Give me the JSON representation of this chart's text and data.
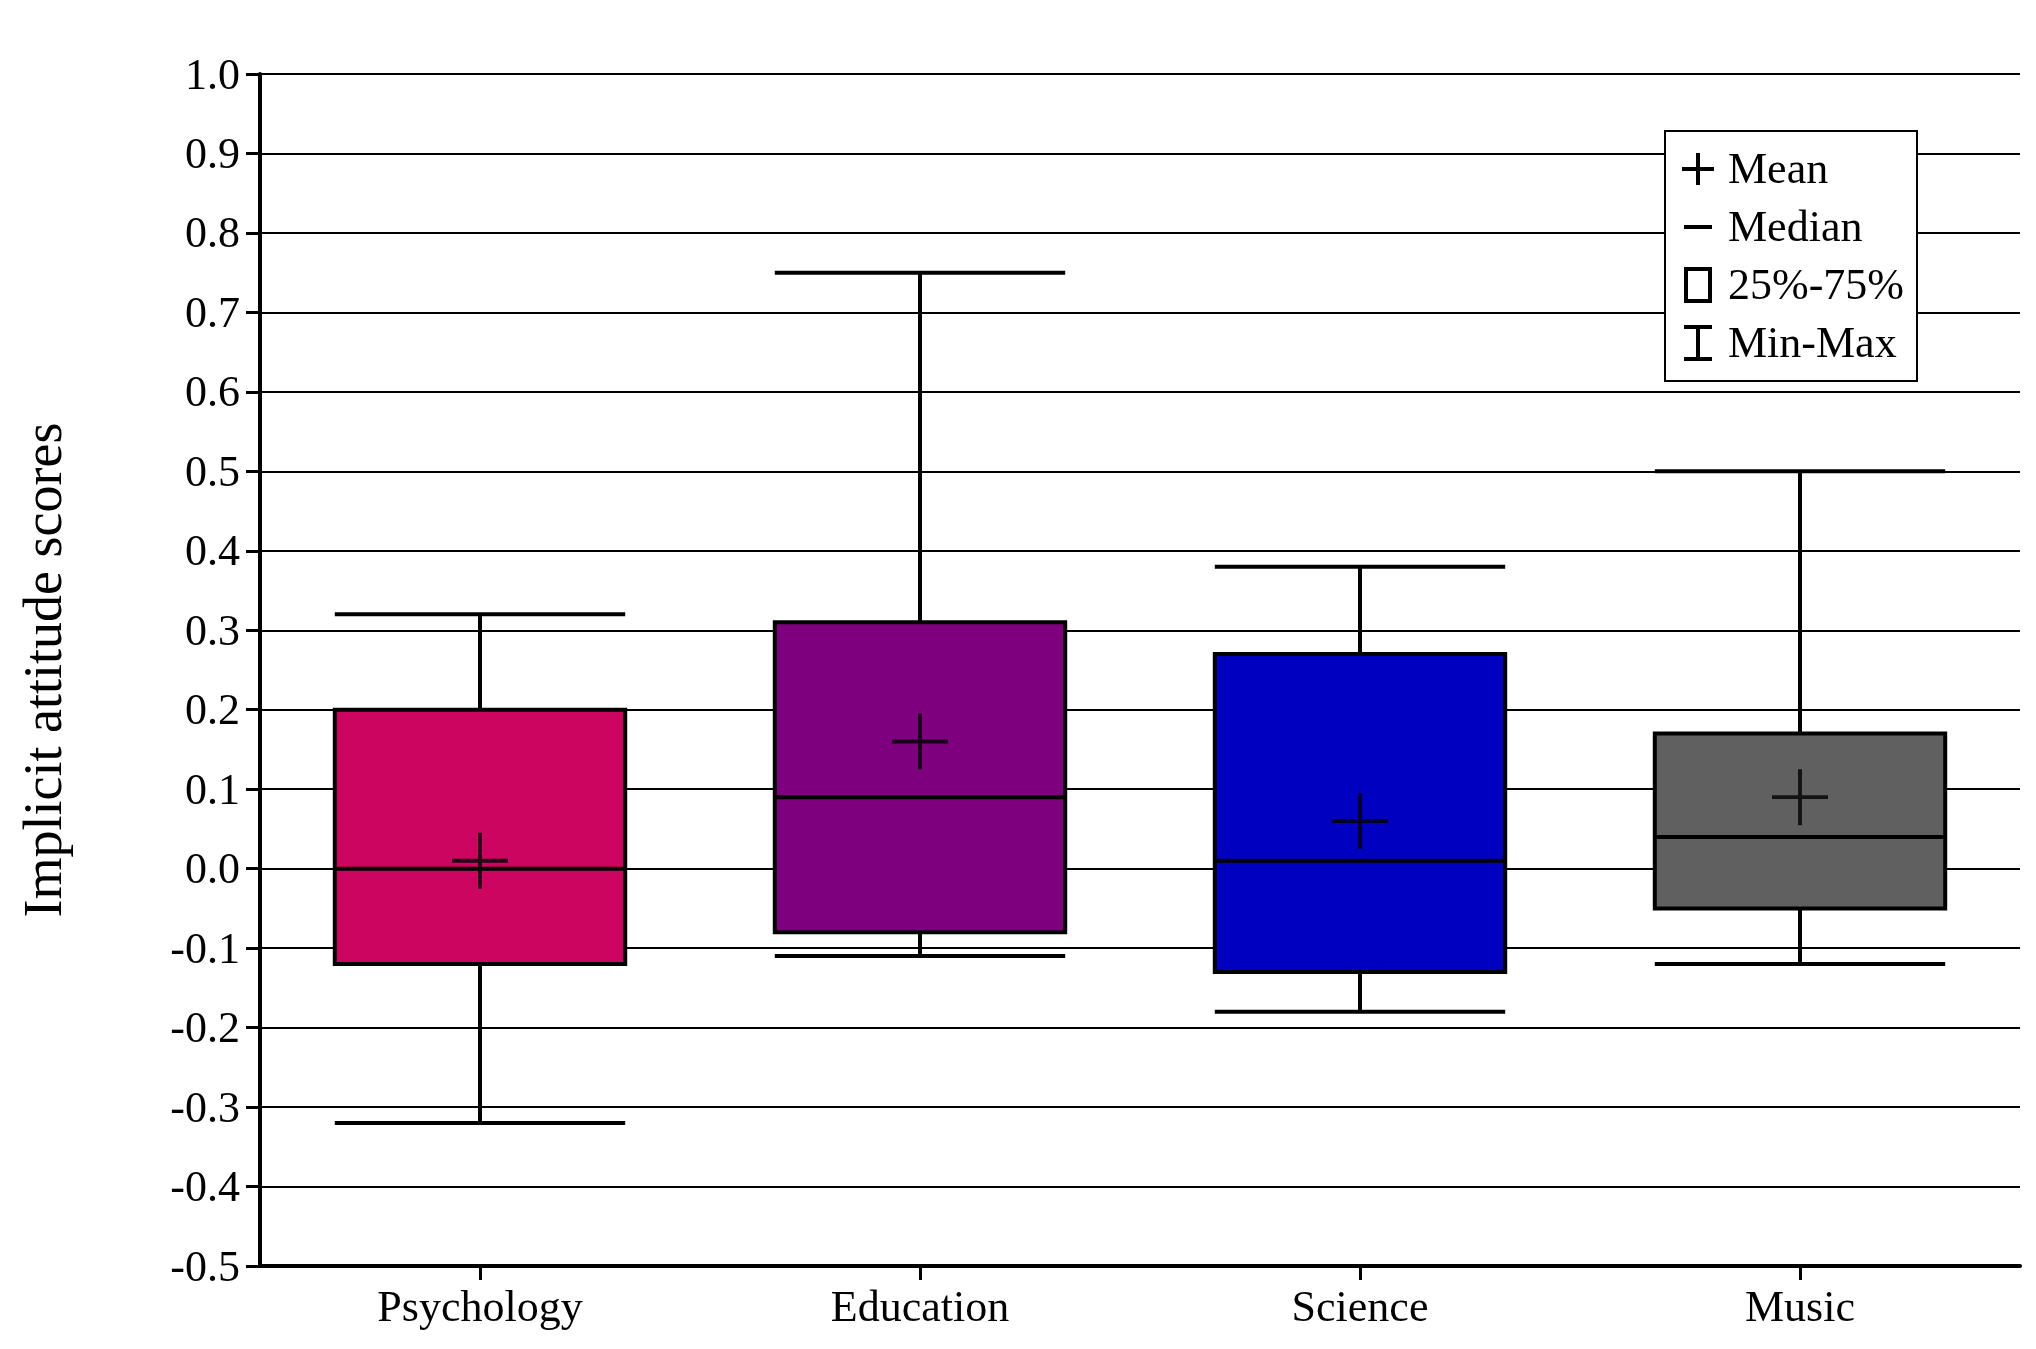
{
  "chart_data": {
    "type": "box",
    "ylabel": "Implicit attitude scores",
    "categories": [
      "Psychology",
      "Education",
      "Science",
      "Music"
    ],
    "series": [
      {
        "name": "25%-75%",
        "colors": [
          "#cc0660",
          "#7f007f",
          "#0000c0",
          "#606060"
        ],
        "boxes": [
          {
            "low": -0.32,
            "q1": -0.12,
            "median": 0.0,
            "q3": 0.2,
            "high": 0.32
          },
          {
            "low": -0.11,
            "q1": -0.08,
            "median": 0.09,
            "q3": 0.31,
            "high": 0.75
          },
          {
            "low": -0.18,
            "q1": -0.13,
            "median": 0.01,
            "q3": 0.27,
            "high": 0.38
          },
          {
            "low": -0.12,
            "q1": -0.05,
            "median": 0.04,
            "q3": 0.17,
            "high": 0.5
          }
        ]
      },
      {
        "name": "Mean",
        "type": "scatter",
        "color": "#000000",
        "x": [
          "Psychology",
          "Education",
          "Science",
          "Music"
        ],
        "values": [
          0.01,
          0.16,
          0.06,
          0.09
        ]
      }
    ],
    "ylim": [
      -0.5,
      1.0
    ],
    "yticks": [
      {
        "value": -0.5,
        "label": "-0.5"
      },
      {
        "value": -0.4,
        "label": "-0.4"
      },
      {
        "value": -0.3,
        "label": "-0.3"
      },
      {
        "value": -0.2,
        "label": "-0.2"
      },
      {
        "value": -0.1,
        "label": "-0.1"
      },
      {
        "value": 0,
        "label": "0.0"
      },
      {
        "value": 0.1,
        "label": "0.1"
      },
      {
        "value": 0.2,
        "label": "0.2"
      },
      {
        "value": 0.3,
        "label": "0.3"
      },
      {
        "value": 0.4,
        "label": "0.4"
      },
      {
        "value": 0.5,
        "label": "0.5"
      },
      {
        "value": 0.6,
        "label": "0.6"
      },
      {
        "value": 0.7,
        "label": "0.7"
      },
      {
        "value": 0.8,
        "label": "0.8"
      },
      {
        "value": 0.9,
        "label": "0.9"
      },
      {
        "value": 1,
        "label": "1.0"
      }
    ],
    "grid": "y",
    "marker": "cross",
    "legend": "top right",
    "annotations": [
      "Median",
      "Min-Max"
    ]
  }
}
